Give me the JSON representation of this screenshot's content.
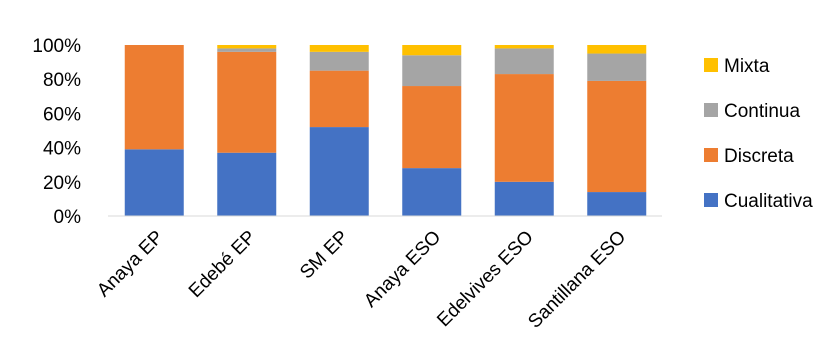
{
  "chart_data": {
    "type": "bar",
    "stacked": true,
    "categories": [
      "Anaya EP",
      "Edebé EP",
      "SM EP",
      "Anaya ESO",
      "Edelvives ESO",
      "Santillana ESO"
    ],
    "series": [
      {
        "name": "Cualitativa",
        "color": "#4472C4",
        "values": [
          39,
          37,
          52,
          28,
          20,
          14
        ]
      },
      {
        "name": "Discreta",
        "color": "#ED7D31",
        "values": [
          61,
          59,
          33,
          48,
          63,
          65
        ]
      },
      {
        "name": "Continua",
        "color": "#A5A5A5",
        "values": [
          0,
          2,
          11,
          18,
          15,
          16
        ]
      },
      {
        "name": "Mixta",
        "color": "#FFC000",
        "values": [
          0,
          2,
          4,
          6,
          2,
          5
        ]
      }
    ],
    "ylim": [
      0,
      100
    ],
    "yticks": [
      0,
      20,
      40,
      60,
      80,
      100
    ],
    "ytick_labels": [
      "0%",
      "20%",
      "40%",
      "60%",
      "80%",
      "100%"
    ],
    "legend_order": [
      "Mixta",
      "Continua",
      "Discreta",
      "Cualitativa"
    ],
    "legend_position": "right",
    "grid": false,
    "title": "",
    "xlabel": "",
    "ylabel": ""
  }
}
